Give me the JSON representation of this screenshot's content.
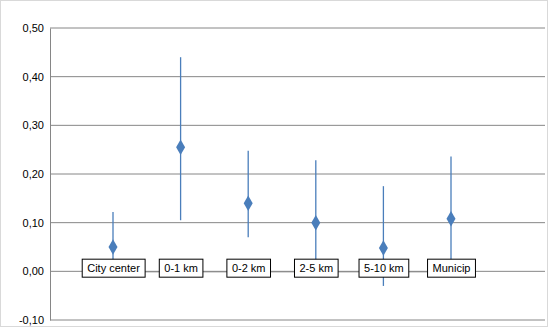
{
  "chart_data": {
    "type": "scatter",
    "categories": [
      "City center",
      "0-1 km",
      "0-2 km",
      "2-5 km",
      "5-10 km",
      "Municip"
    ],
    "values": [
      0.05,
      0.255,
      0.14,
      0.1,
      0.048,
      0.108
    ],
    "lower": [
      0.005,
      0.105,
      0.07,
      0.008,
      -0.03,
      0.015
    ],
    "upper": [
      0.122,
      0.44,
      0.248,
      0.228,
      0.175,
      0.236
    ],
    "color": "#4a7ebb",
    "marker": "diamond",
    "ylim": [
      -0.1,
      0.5
    ],
    "yticks": [
      {
        "value": -0.1,
        "label": "-0,10"
      },
      {
        "value": 0,
        "label": "0,00"
      },
      {
        "value": 0.1,
        "label": "0,10"
      },
      {
        "value": 0.2,
        "label": "0,20"
      },
      {
        "value": 0.3,
        "label": "0,30"
      },
      {
        "value": 0.4,
        "label": "0,40"
      },
      {
        "value": 0.5,
        "label": "0,50"
      }
    ],
    "grid": true
  }
}
